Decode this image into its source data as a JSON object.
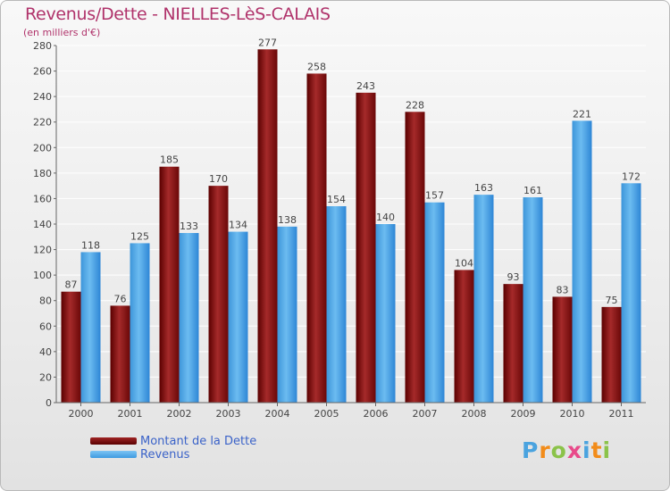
{
  "header": {
    "title": "Revenus/Dette - NIELLES-LèS-CALAIS",
    "subtitle": "(en milliers d'€)"
  },
  "legend": {
    "dette_label": "Montant de la Dette",
    "revenus_label": "Revenus"
  },
  "logo": {
    "text": "Proxiti",
    "letters": [
      "P",
      "r",
      "o",
      "x",
      "i",
      "t",
      "i"
    ],
    "colors": [
      "#4aa3df",
      "#f28c1a",
      "#8bc34a",
      "#e84a8a",
      "#4aa3df",
      "#f28c1a",
      "#8bc34a"
    ]
  },
  "colors": {
    "dette_top": "#a02424",
    "dette_bottom": "#5a0000",
    "revenus_top": "#7cc4f4",
    "revenus_bottom": "#2e86d6",
    "title": "#b0336b",
    "legend_text": "#3a62c8"
  },
  "chart_data": {
    "type": "bar",
    "title": "Revenus/Dette - NIELLES-LèS-CALAIS",
    "ylabel": "(en milliers d'€)",
    "xlabel": "",
    "categories": [
      "2000",
      "2001",
      "2002",
      "2003",
      "2004",
      "2005",
      "2006",
      "2007",
      "2008",
      "2009",
      "2010",
      "2011"
    ],
    "series": [
      {
        "name": "Montant de la Dette",
        "values": [
          87,
          76,
          185,
          170,
          277,
          258,
          243,
          228,
          104,
          93,
          83,
          75
        ]
      },
      {
        "name": "Revenus",
        "values": [
          118,
          125,
          133,
          134,
          138,
          154,
          140,
          157,
          163,
          161,
          221,
          172
        ]
      }
    ],
    "ylim": [
      0,
      280
    ],
    "yticks": [
      0,
      20,
      40,
      60,
      80,
      100,
      120,
      140,
      160,
      180,
      200,
      220,
      240,
      260,
      280
    ],
    "grid": true,
    "legend_position": "bottom-left"
  }
}
